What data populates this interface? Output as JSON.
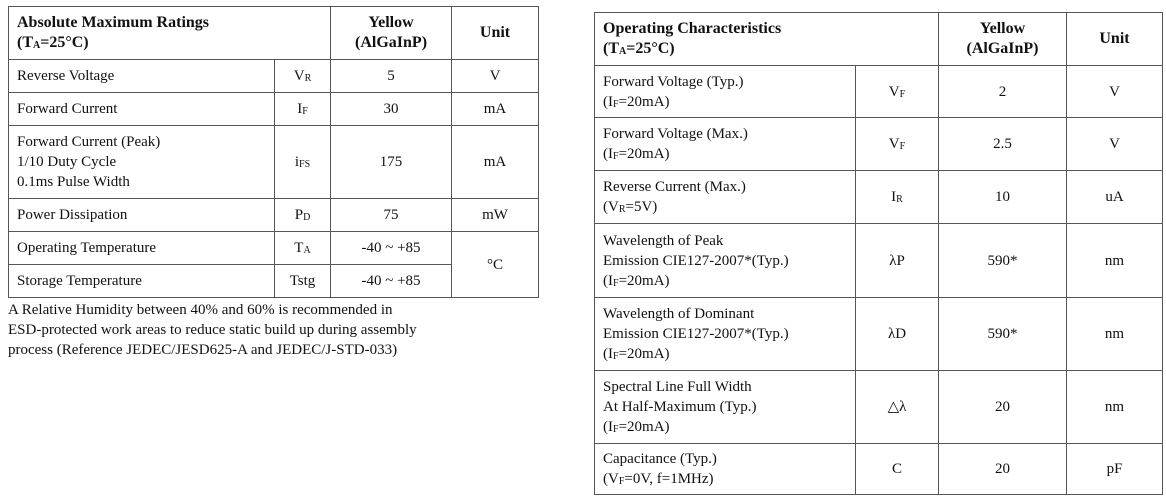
{
  "ratings_table": {
    "header": [
      [
        "Absolute Maximum Ratings",
        [
          "(T",
          {
            "sub": "A"
          },
          "=25°C)"
        ]
      ],
      [
        "Yellow",
        "(AlGaInP)"
      ],
      "Unit"
    ],
    "rows": [
      [
        "Reverse Voltage",
        [
          [
            "V",
            {
              "sub": "R"
            }
          ]
        ],
        "5",
        "V"
      ],
      [
        "Forward Current",
        [
          [
            "I",
            {
              "sub": "F"
            }
          ]
        ],
        "30",
        "mA"
      ],
      [
        [
          "Forward Current (Peak)",
          "1/10 Duty Cycle",
          "0.1ms Pulse Width"
        ],
        [
          [
            "i",
            {
              "sub": "FS"
            }
          ]
        ],
        "175",
        "mA"
      ],
      [
        "Power Dissipation",
        [
          [
            "P",
            {
              "sub": "D"
            }
          ]
        ],
        "75",
        "mW"
      ],
      [
        "Operating Temperature",
        [
          [
            "T",
            {
              "sub": "A"
            }
          ]
        ],
        "-40 ~ +85",
        "°C"
      ],
      [
        "Storage Temperature",
        "Tstg",
        "-40 ~ +85"
      ]
    ]
  },
  "note": [
    "A Relative Humidity between 40% and 60% is recommended in",
    "ESD-protected work areas to reduce static build up during assembly",
    "process (Reference JEDEC/JESD625-A and JEDEC/J-STD-033)"
  ],
  "characteristics_table": {
    "header": [
      [
        "Operating Characteristics",
        [
          "(T",
          {
            "sub": "A"
          },
          "=25°C)"
        ]
      ],
      [
        "Yellow",
        "(AlGaInP)"
      ],
      "Unit"
    ],
    "rows": [
      [
        [
          "Forward Voltage (Typ.)",
          [
            "(I",
            {
              "sub": "F"
            },
            "=20mA)"
          ]
        ],
        [
          [
            "V",
            {
              "sub": "F"
            }
          ]
        ],
        "2",
        "V"
      ],
      [
        [
          "Forward Voltage (Max.)",
          [
            "(I",
            {
              "sub": "F"
            },
            "=20mA)"
          ]
        ],
        [
          [
            "V",
            {
              "sub": "F"
            }
          ]
        ],
        "2.5",
        "V"
      ],
      [
        [
          "Reverse Current (Max.)",
          [
            "(V",
            {
              "sub": "R"
            },
            "=5V)"
          ]
        ],
        [
          [
            "I",
            {
              "sub": "R"
            }
          ]
        ],
        "10",
        "uA"
      ],
      [
        [
          "Wavelength of Peak",
          "Emission CIE127-2007*(Typ.)",
          [
            "(I",
            {
              "sub": "F"
            },
            "=20mA)"
          ]
        ],
        "λP",
        "590*",
        "nm"
      ],
      [
        [
          "Wavelength of Dominant",
          "Emission CIE127-2007*(Typ.)",
          [
            "(I",
            {
              "sub": "F"
            },
            "=20mA)"
          ]
        ],
        "λD",
        "590*",
        "nm"
      ],
      [
        [
          "Spectral Line Full Width",
          "At Half-Maximum (Typ.)",
          [
            "(I",
            {
              "sub": "F"
            },
            "=20mA)"
          ]
        ],
        "△λ",
        "20",
        "nm"
      ],
      [
        [
          "Capacitance (Typ.)",
          [
            "(V",
            {
              "sub": "F"
            },
            "=0V, f=1MHz)"
          ]
        ],
        "C",
        "20",
        "pF"
      ]
    ]
  }
}
